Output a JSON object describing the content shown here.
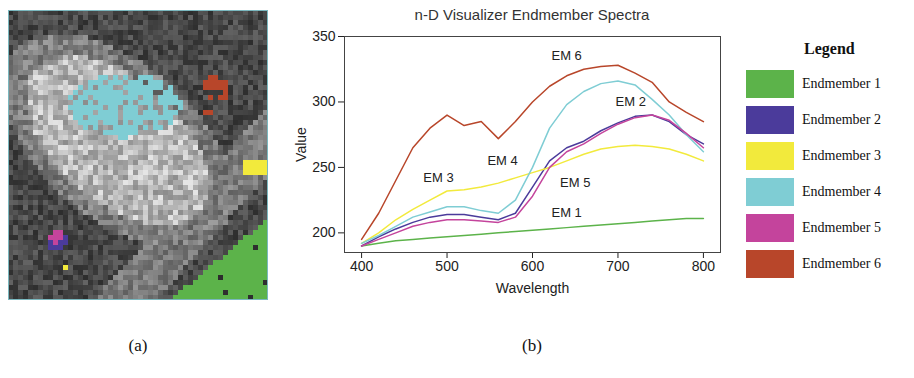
{
  "chart_data": {
    "type": "line",
    "title": "n-D Visualizer Endmember Spectra",
    "x_label": "Wavelength",
    "y_label": "Value",
    "x": [
      400,
      420,
      440,
      460,
      480,
      500,
      520,
      540,
      560,
      580,
      600,
      620,
      640,
      660,
      680,
      700,
      720,
      740,
      760,
      780,
      800
    ],
    "series": [
      {
        "name": "Endmember 1",
        "color": "#5cb34a",
        "values": [
          190,
          192,
          194,
          195,
          196,
          197,
          198,
          199,
          200,
          201,
          202,
          203,
          204,
          205,
          206,
          207,
          208,
          209,
          210,
          211,
          211
        ]
      },
      {
        "name": "Endmember 2",
        "color": "#4b3b9b",
        "values": [
          190,
          197,
          203,
          208,
          212,
          214,
          214,
          212,
          210,
          215,
          235,
          255,
          265,
          270,
          278,
          284,
          289,
          290,
          285,
          275,
          268
        ]
      },
      {
        "name": "Endmember 3",
        "color": "#f2ea3c",
        "values": [
          192,
          200,
          210,
          218,
          225,
          232,
          233,
          235,
          238,
          242,
          246,
          250,
          255,
          260,
          264,
          266,
          267,
          266,
          264,
          260,
          255
        ]
      },
      {
        "name": "Endmember 4",
        "color": "#7fcdd4",
        "values": [
          192,
          198,
          205,
          212,
          216,
          220,
          220,
          217,
          215,
          225,
          250,
          280,
          298,
          308,
          314,
          316,
          313,
          302,
          290,
          275,
          262
        ]
      },
      {
        "name": "Endmember 5",
        "color": "#c4449c",
        "values": [
          190,
          195,
          200,
          205,
          208,
          210,
          210,
          209,
          208,
          212,
          228,
          250,
          262,
          268,
          276,
          283,
          288,
          290,
          286,
          276,
          265
        ]
      },
      {
        "name": "Endmember 6",
        "color": "#b8462a",
        "values": [
          195,
          215,
          240,
          265,
          280,
          290,
          282,
          285,
          272,
          285,
          300,
          312,
          320,
          325,
          327,
          328,
          322,
          315,
          300,
          292,
          285
        ]
      }
    ],
    "annotations": [
      {
        "text": "EM 6",
        "x": 640,
        "y": 335
      },
      {
        "text": "EM 4",
        "x": 565,
        "y": 255
      },
      {
        "text": "EM 2",
        "x": 715,
        "y": 300
      },
      {
        "text": "EM 3",
        "x": 490,
        "y": 242
      },
      {
        "text": "EM 5",
        "x": 650,
        "y": 238
      },
      {
        "text": "EM 1",
        "x": 640,
        "y": 215
      }
    ],
    "xlim": [
      380,
      820
    ],
    "xticks": [
      400,
      500,
      600,
      700,
      800
    ],
    "ylim": [
      185,
      350
    ],
    "yticks": [
      200,
      250,
      300,
      350
    ],
    "grid": false,
    "legend": "right",
    "legend_title": "Legend",
    "panel_labels": [
      "(a)",
      "(b)"
    ]
  }
}
